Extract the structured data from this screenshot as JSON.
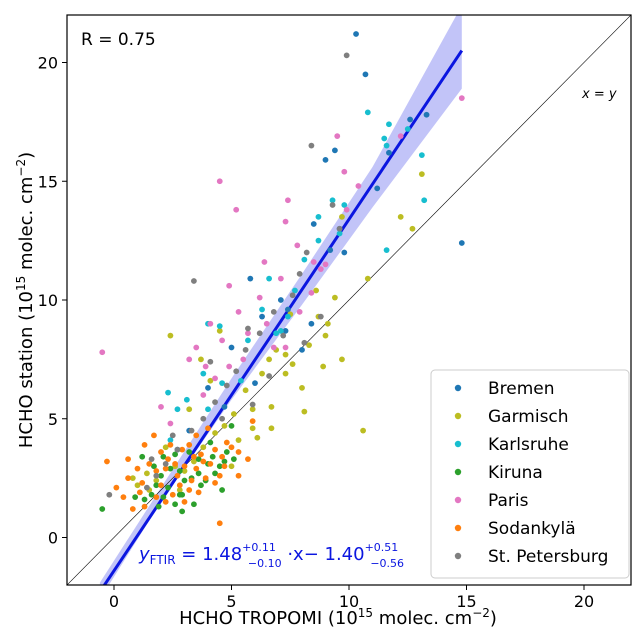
{
  "chart_data": {
    "type": "scatter",
    "xlabel_base": "HCHO TROPOMI (10",
    "xlabel_exp": "15",
    "xlabel_tail": " molec. cm",
    "xlabel_tail_exp": "−2",
    "xlabel_close": ")",
    "ylabel_base": "HCHO station (10",
    "ylabel_exp": "15",
    "ylabel_tail": " molec. cm",
    "ylabel_tail_exp": "−2",
    "ylabel_close": ")",
    "xlim": [
      -2,
      22
    ],
    "ylim": [
      -2,
      22
    ],
    "xticks": [
      0,
      5,
      10,
      15,
      20
    ],
    "yticks": [
      0,
      5,
      10,
      15,
      20
    ],
    "grid": false,
    "legend_position": "bottom-right",
    "annotations": {
      "r_label": "R = 0.75",
      "identity_label": "x = y",
      "equation_lead": "y",
      "equation_sub": "FTIR",
      "equation_eq": " = 1.48",
      "slope_up": "+0.11",
      "slope_down": "−0.10",
      "equation_mid": " ·x−  1.40",
      "int_up": "+0.51",
      "int_down": "−0.56"
    },
    "regression": {
      "slope": 1.48,
      "intercept": -1.4,
      "x_range": [
        -0.6,
        14.8
      ],
      "band_lower": [
        [
          -0.6,
          -2.6
        ],
        [
          2,
          1.5
        ],
        [
          5,
          5.8
        ],
        [
          8,
          9.8
        ],
        [
          11,
          13.9
        ],
        [
          14.8,
          18.9
        ]
      ],
      "band_upper": [
        [
          -0.6,
          -1.9
        ],
        [
          2,
          2.1
        ],
        [
          5,
          6.7
        ],
        [
          8,
          11.1
        ],
        [
          11,
          15.6
        ],
        [
          14.8,
          22.4
        ]
      ],
      "color": "#0b16e0",
      "band_color": "#8f93f2"
    },
    "identity_line": [
      [
        -2,
        -2
      ],
      [
        22,
        22
      ]
    ],
    "series": [
      {
        "name": "Bremen",
        "color": "#1f77b4",
        "points": [
          [
            10.3,
            21.2
          ],
          [
            10.7,
            19.5
          ],
          [
            12.6,
            17.6
          ],
          [
            13.3,
            17.8
          ],
          [
            11.7,
            16.2
          ],
          [
            9.4,
            16.3
          ],
          [
            9.0,
            15.9
          ],
          [
            11.2,
            14.7
          ],
          [
            9.6,
            13.0
          ],
          [
            9.2,
            12.1
          ],
          [
            14.8,
            12.4
          ],
          [
            8.5,
            13.2
          ],
          [
            5.8,
            10.9
          ],
          [
            7.1,
            10.0
          ],
          [
            6.3,
            9.3
          ],
          [
            7.3,
            8.7
          ],
          [
            5.0,
            8.0
          ],
          [
            8.0,
            7.9
          ],
          [
            4.0,
            6.3
          ],
          [
            3.2,
            4.5
          ],
          [
            6.0,
            6.5
          ],
          [
            4.7,
            5.5
          ],
          [
            2.7,
            3.7
          ],
          [
            7.4,
            9.6
          ],
          [
            8.4,
            9.0
          ],
          [
            9.8,
            12.0
          ]
        ]
      },
      {
        "name": "Garmisch",
        "color": "#bcbd22",
        "points": [
          [
            10.6,
            4.5
          ],
          [
            10.8,
            10.9
          ],
          [
            12.2,
            13.5
          ],
          [
            13.1,
            15.3
          ],
          [
            12.7,
            13.0
          ],
          [
            9.7,
            13.5
          ],
          [
            8.6,
            10.4
          ],
          [
            9.4,
            10.1
          ],
          [
            8.7,
            9.3
          ],
          [
            9.1,
            9.0
          ],
          [
            7.5,
            9.4
          ],
          [
            8.3,
            8.1
          ],
          [
            9.7,
            7.5
          ],
          [
            7.3,
            7.7
          ],
          [
            6.6,
            7.5
          ],
          [
            7.3,
            6.9
          ],
          [
            8.0,
            6.3
          ],
          [
            6.7,
            5.5
          ],
          [
            6.3,
            6.9
          ],
          [
            5.6,
            6.2
          ],
          [
            5.9,
            5.4
          ],
          [
            5.1,
            5.2
          ],
          [
            4.7,
            4.7
          ],
          [
            4.3,
            4.4
          ],
          [
            6.7,
            4.6
          ],
          [
            5.9,
            4.6
          ],
          [
            3.8,
            3.8
          ],
          [
            3.4,
            3.2
          ],
          [
            3.0,
            2.8
          ],
          [
            2.6,
            3.0
          ],
          [
            2.2,
            3.8
          ],
          [
            1.8,
            2.4
          ],
          [
            1.4,
            2.7
          ],
          [
            2.4,
            8.5
          ],
          [
            3.7,
            7.5
          ],
          [
            4.1,
            6.6
          ],
          [
            6.9,
            7.9
          ],
          [
            7.6,
            7.3
          ],
          [
            9.0,
            8.5
          ],
          [
            8.9,
            7.2
          ],
          [
            1.0,
            2.2
          ],
          [
            0.8,
            2.5
          ],
          [
            1.5,
            2.0
          ],
          [
            2.8,
            2.0
          ],
          [
            3.2,
            5.4
          ],
          [
            5.0,
            3.0
          ],
          [
            5.3,
            4.1
          ],
          [
            6.1,
            4.2
          ],
          [
            4.5,
            8.7
          ],
          [
            8.1,
            5.3
          ]
        ]
      },
      {
        "name": "Karlsruhe",
        "color": "#17becf",
        "points": [
          [
            11.7,
            17.4
          ],
          [
            10.8,
            17.9
          ],
          [
            11.5,
            16.8
          ],
          [
            12.5,
            17.2
          ],
          [
            13.1,
            16.1
          ],
          [
            11.6,
            16.5
          ],
          [
            13.2,
            14.2
          ],
          [
            9.3,
            14.2
          ],
          [
            9.8,
            14.0
          ],
          [
            8.7,
            13.5
          ],
          [
            8.7,
            12.5
          ],
          [
            9.6,
            12.8
          ],
          [
            11.6,
            12.1
          ],
          [
            8.1,
            11.7
          ],
          [
            7.7,
            10.4
          ],
          [
            6.6,
            10.9
          ],
          [
            6.3,
            9.6
          ],
          [
            7.4,
            9.3
          ],
          [
            7.1,
            8.7
          ],
          [
            4.5,
            8.9
          ],
          [
            5.7,
            8.3
          ],
          [
            4.0,
            9.0
          ],
          [
            4.6,
            6.5
          ],
          [
            3.8,
            6.9
          ],
          [
            4.0,
            5.4
          ],
          [
            2.4,
            4.1
          ],
          [
            3.1,
            5.8
          ],
          [
            2.3,
            6.1
          ],
          [
            2.7,
            5.4
          ],
          [
            5.4,
            6.6
          ],
          [
            6.9,
            8.6
          ]
        ]
      },
      {
        "name": "Kiruna",
        "color": "#2ca02c",
        "points": [
          [
            -0.5,
            1.2
          ],
          [
            0.9,
            1.7
          ],
          [
            1.3,
            1.6
          ],
          [
            1.6,
            1.8
          ],
          [
            1.8,
            2.2
          ],
          [
            2.0,
            2.6
          ],
          [
            2.3,
            2.1
          ],
          [
            2.6,
            1.4
          ],
          [
            2.9,
            1.8
          ],
          [
            3.3,
            2.5
          ],
          [
            3.7,
            2.2
          ],
          [
            4.0,
            3.1
          ],
          [
            4.3,
            2.7
          ],
          [
            4.6,
            2.0
          ],
          [
            5.1,
            3.3
          ],
          [
            5.0,
            4.7
          ],
          [
            4.8,
            3.6
          ],
          [
            4.2,
            3.4
          ],
          [
            3.6,
            3.3
          ],
          [
            3.2,
            3.6
          ],
          [
            2.8,
            2.8
          ],
          [
            2.4,
            2.9
          ],
          [
            2.1,
            3.4
          ],
          [
            1.7,
            3.0
          ],
          [
            1.2,
            3.4
          ],
          [
            3.9,
            2.4
          ],
          [
            3.4,
            1.4
          ],
          [
            2.9,
            1.1
          ],
          [
            2.1,
            1.7
          ],
          [
            4.5,
            3.0
          ],
          [
            2.6,
            3.5
          ],
          [
            3.0,
            2.4
          ],
          [
            4.1,
            4.0
          ],
          [
            4.7,
            3.2
          ],
          [
            1.9,
            1.3
          ],
          [
            2.8,
            1.8
          ],
          [
            3.6,
            2.7
          ]
        ]
      },
      {
        "name": "Paris",
        "color": "#e377c2",
        "points": [
          [
            -0.5,
            7.8
          ],
          [
            14.8,
            18.5
          ],
          [
            12.2,
            16.9
          ],
          [
            10.4,
            14.8
          ],
          [
            9.8,
            15.4
          ],
          [
            9.5,
            16.9
          ],
          [
            7.4,
            14.2
          ],
          [
            5.2,
            13.8
          ],
          [
            4.5,
            15.0
          ],
          [
            7.8,
            12.3
          ],
          [
            8.5,
            11.6
          ],
          [
            7.3,
            13.3
          ],
          [
            6.4,
            11.6
          ],
          [
            8.8,
            11.3
          ],
          [
            7.1,
            10.9
          ],
          [
            4.9,
            10.6
          ],
          [
            6.2,
            10.1
          ],
          [
            5.3,
            9.5
          ],
          [
            4.1,
            9.0
          ],
          [
            3.5,
            8.0
          ],
          [
            4.6,
            8.3
          ],
          [
            5.7,
            8.6
          ],
          [
            6.5,
            9.0
          ],
          [
            6.8,
            8.0
          ],
          [
            5.5,
            7.5
          ],
          [
            4.9,
            7.2
          ],
          [
            4.3,
            6.7
          ],
          [
            3.9,
            7.2
          ],
          [
            3.2,
            7.5
          ],
          [
            3.8,
            6.0
          ],
          [
            2.4,
            4.8
          ],
          [
            2.0,
            5.5
          ],
          [
            7.3,
            8.0
          ],
          [
            7.9,
            9.5
          ],
          [
            8.4,
            10.3
          ],
          [
            9.0,
            11.5
          ],
          [
            9.9,
            13.8
          ]
        ]
      },
      {
        "name": "Sodankylä",
        "color": "#ff7f0e",
        "points": [
          [
            -0.3,
            3.2
          ],
          [
            0.1,
            2.1
          ],
          [
            0.4,
            1.7
          ],
          [
            0.6,
            2.5
          ],
          [
            1.0,
            2.9
          ],
          [
            1.2,
            2.3
          ],
          [
            1.5,
            3.1
          ],
          [
            1.8,
            2.8
          ],
          [
            2.0,
            3.6
          ],
          [
            2.3,
            3.3
          ],
          [
            2.6,
            3.1
          ],
          [
            2.9,
            3.7
          ],
          [
            3.2,
            3.9
          ],
          [
            3.5,
            4.3
          ],
          [
            3.7,
            3.5
          ],
          [
            4.1,
            3.1
          ],
          [
            4.3,
            3.7
          ],
          [
            4.6,
            3.4
          ],
          [
            4.8,
            4.0
          ],
          [
            5.0,
            3.8
          ],
          [
            5.3,
            3.6
          ],
          [
            4.7,
            3.0
          ],
          [
            4.5,
            2.6
          ],
          [
            3.9,
            2.5
          ],
          [
            3.5,
            2.9
          ],
          [
            3.3,
            2.4
          ],
          [
            2.8,
            2.2
          ],
          [
            2.5,
            1.8
          ],
          [
            2.2,
            1.5
          ],
          [
            1.8,
            1.7
          ],
          [
            1.3,
            1.3
          ],
          [
            0.8,
            1.2
          ],
          [
            2.2,
            2.9
          ],
          [
            2.7,
            2.6
          ],
          [
            3.2,
            2.0
          ],
          [
            3.6,
            1.9
          ],
          [
            4.3,
            2.3
          ],
          [
            5.3,
            2.6
          ],
          [
            5.7,
            3.3
          ],
          [
            5.9,
            4.9
          ],
          [
            4.5,
            0.6
          ],
          [
            1.7,
            4.3
          ],
          [
            1.3,
            3.9
          ],
          [
            0.6,
            3.3
          ],
          [
            3.8,
            3.2
          ],
          [
            2.4,
            3.9
          ],
          [
            3.0,
            1.5
          ],
          [
            4.0,
            4.6
          ],
          [
            1.1,
            1.9
          ],
          [
            2.0,
            2.2
          ],
          [
            3.0,
            3.0
          ],
          [
            3.4,
            3.4
          ]
        ]
      },
      {
        "name": "St. Petersburg",
        "color": "#7f7f7f",
        "points": [
          [
            -0.2,
            1.8
          ],
          [
            9.9,
            20.3
          ],
          [
            8.4,
            16.5
          ],
          [
            9.3,
            14.0
          ],
          [
            9.6,
            13.0
          ],
          [
            8.2,
            12.0
          ],
          [
            7.6,
            10.2
          ],
          [
            6.8,
            9.5
          ],
          [
            6.2,
            8.6
          ],
          [
            5.6,
            7.9
          ],
          [
            5.2,
            7.0
          ],
          [
            4.8,
            6.4
          ],
          [
            4.3,
            5.7
          ],
          [
            3.8,
            5.0
          ],
          [
            3.3,
            4.5
          ],
          [
            2.7,
            3.7
          ],
          [
            2.2,
            3.1
          ],
          [
            1.8,
            2.6
          ],
          [
            1.4,
            2.1
          ],
          [
            3.4,
            10.8
          ],
          [
            4.1,
            7.4
          ],
          [
            7.2,
            8.5
          ],
          [
            8.1,
            8.2
          ],
          [
            8.8,
            9.3
          ],
          [
            5.9,
            5.6
          ],
          [
            6.6,
            6.8
          ],
          [
            4.6,
            5.0
          ],
          [
            2.5,
            4.3
          ],
          [
            1.6,
            3.3
          ],
          [
            5.7,
            8.8
          ],
          [
            7.9,
            11.1
          ]
        ]
      }
    ]
  }
}
